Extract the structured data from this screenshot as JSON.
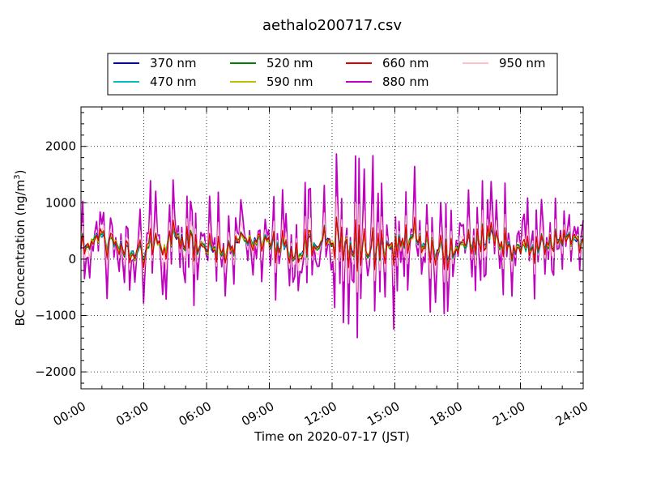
{
  "chart_data": {
    "type": "line",
    "title": "aethalo200717.csv",
    "xlabel": "Time on 2020-07-17 (JST)",
    "ylabel": "BC Concentration (ng/m",
    "ylabel_sup": "3",
    "ylabel_close": ")",
    "xlim": [
      0,
      24
    ],
    "ylim": [
      -2300,
      2700
    ],
    "x_ticks": [
      0,
      3,
      6,
      9,
      12,
      15,
      18,
      21,
      24
    ],
    "x_tick_labels": [
      "00:00",
      "03:00",
      "06:00",
      "09:00",
      "12:00",
      "15:00",
      "18:00",
      "21:00",
      "24:00"
    ],
    "y_ticks": [
      -2000,
      -1000,
      0,
      1000,
      2000
    ],
    "y_tick_labels": [
      "−2000",
      "−1000",
      "0",
      "1000",
      "2000"
    ],
    "grid": true,
    "legend_placement": "top-center, 4 columns",
    "series": [
      {
        "name": "370 nm",
        "color": "#0000cc",
        "amplitude": 220
      },
      {
        "name": "470 nm",
        "color": "#00bfbf",
        "amplitude": 230
      },
      {
        "name": "520 nm",
        "color": "#008000",
        "amplitude": 260
      },
      {
        "name": "590 nm",
        "color": "#bfbf00",
        "amplitude": 250
      },
      {
        "name": "660 nm",
        "color": "#dd0000",
        "amplitude": 300
      },
      {
        "name": "880 nm",
        "color": "#bf00bf",
        "amplitude": 1100
      },
      {
        "name": "950 nm",
        "color": "#ffc0cb",
        "amplitude": 600
      }
    ]
  }
}
